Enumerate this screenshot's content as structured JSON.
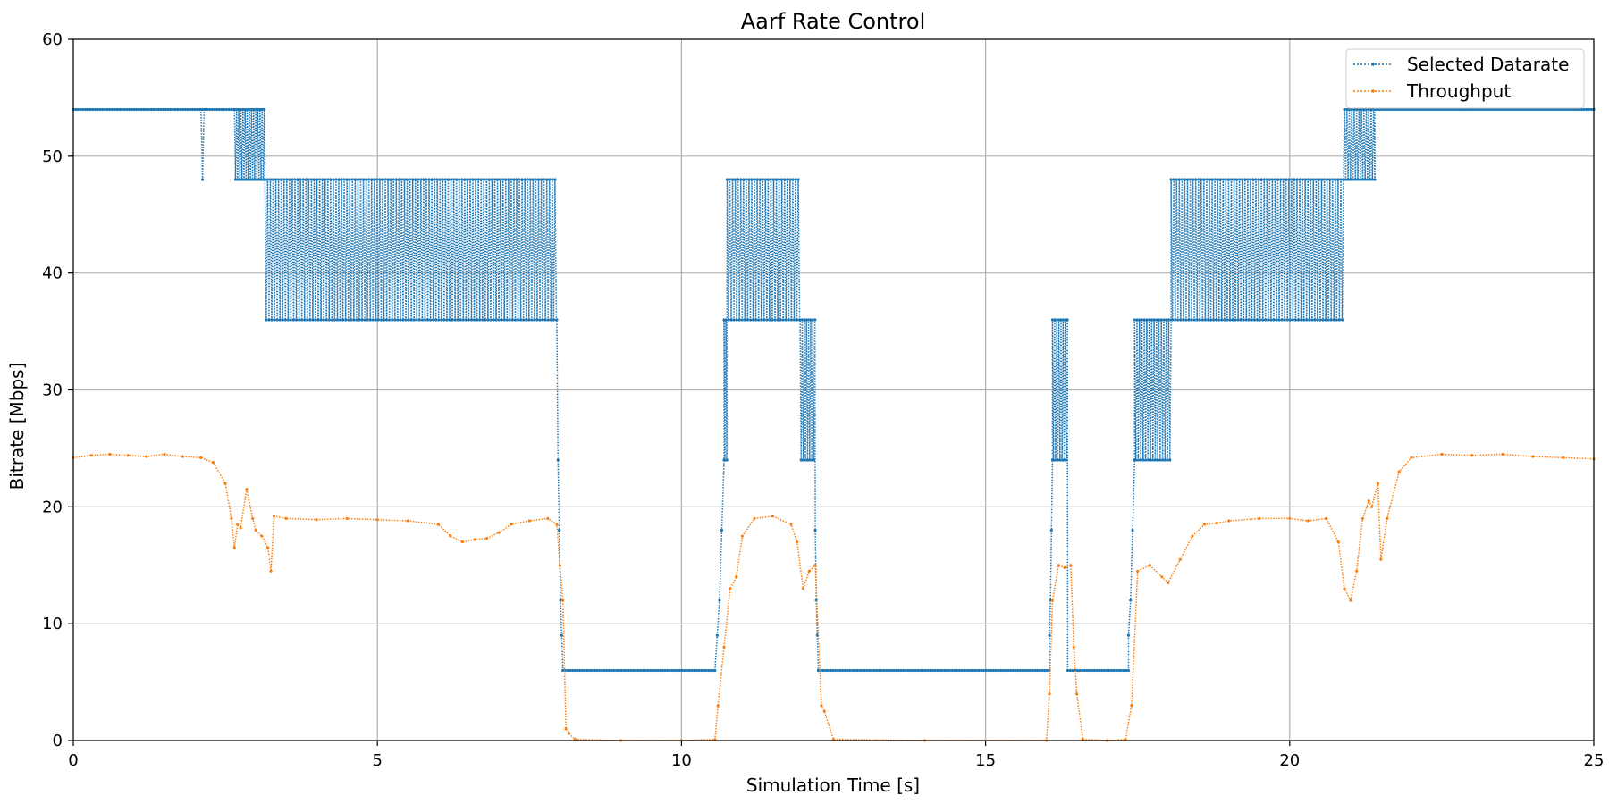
{
  "chart_data": {
    "type": "line",
    "title": "Aarf Rate Control",
    "xlabel": "Simulation Time [s]",
    "ylabel": "Bitrate [Mbps]",
    "xlim": [
      0,
      25
    ],
    "ylim": [
      0,
      60
    ],
    "xticks": [
      0,
      5,
      10,
      15,
      20,
      25
    ],
    "yticks": [
      0,
      10,
      20,
      30,
      40,
      50,
      60
    ],
    "grid": true,
    "legend_position": "top-right",
    "line_style": "dotted",
    "series": [
      {
        "name": "Selected Datarate",
        "color": "#1f77b4",
        "segments": [
          {
            "x0": 0.0,
            "x1": 2.65,
            "kind": "flat",
            "y": 54
          },
          {
            "x0": 2.1,
            "x1": 2.15,
            "kind": "oscillate",
            "lo": 48,
            "hi": 54,
            "period": 0.05
          },
          {
            "x0": 2.65,
            "x1": 3.15,
            "kind": "oscillate",
            "lo": 48,
            "hi": 54,
            "period": 0.035
          },
          {
            "x0": 3.15,
            "x1": 7.95,
            "kind": "oscillate",
            "lo": 36,
            "hi": 48,
            "period": 0.045
          },
          {
            "x0": 7.95,
            "x1": 8.05,
            "kind": "steps",
            "ys": [
              36,
              24,
              18,
              12,
              9,
              6
            ]
          },
          {
            "x0": 8.05,
            "x1": 10.55,
            "kind": "flat",
            "y": 6
          },
          {
            "x0": 10.55,
            "x1": 10.7,
            "kind": "steps",
            "ys": [
              6,
              9,
              12,
              18,
              24
            ]
          },
          {
            "x0": 10.7,
            "x1": 10.75,
            "kind": "oscillate",
            "lo": 24,
            "hi": 36,
            "period": 0.03
          },
          {
            "x0": 10.75,
            "x1": 11.95,
            "kind": "oscillate",
            "lo": 36,
            "hi": 48,
            "period": 0.045
          },
          {
            "x0": 11.95,
            "x1": 12.2,
            "kind": "oscillate",
            "lo": 24,
            "hi": 36,
            "period": 0.035
          },
          {
            "x0": 12.2,
            "x1": 12.25,
            "kind": "steps",
            "ys": [
              18,
              12,
              9,
              6
            ]
          },
          {
            "x0": 12.25,
            "x1": 16.05,
            "kind": "flat",
            "y": 6
          },
          {
            "x0": 16.05,
            "x1": 16.1,
            "kind": "steps",
            "ys": [
              9,
              12,
              18,
              24
            ]
          },
          {
            "x0": 16.1,
            "x1": 16.35,
            "kind": "oscillate",
            "lo": 24,
            "hi": 36,
            "period": 0.035
          },
          {
            "x0": 16.35,
            "x1": 17.35,
            "kind": "flat",
            "y": 6
          },
          {
            "x0": 17.35,
            "x1": 17.45,
            "kind": "steps",
            "ys": [
              9,
              12,
              18,
              24
            ]
          },
          {
            "x0": 17.45,
            "x1": 18.05,
            "kind": "oscillate",
            "lo": 24,
            "hi": 36,
            "period": 0.04
          },
          {
            "x0": 18.05,
            "x1": 20.9,
            "kind": "oscillate",
            "lo": 36,
            "hi": 48,
            "period": 0.045
          },
          {
            "x0": 20.9,
            "x1": 21.4,
            "kind": "oscillate",
            "lo": 48,
            "hi": 54,
            "period": 0.04
          },
          {
            "x0": 21.4,
            "x1": 25.0,
            "kind": "flat",
            "y": 54
          }
        ]
      },
      {
        "name": "Throughput",
        "color": "#ff7f0e",
        "x": [
          0.0,
          0.3,
          0.6,
          0.9,
          1.2,
          1.5,
          1.8,
          2.1,
          2.3,
          2.5,
          2.6,
          2.65,
          2.7,
          2.75,
          2.85,
          2.95,
          3.0,
          3.1,
          3.2,
          3.25,
          3.3,
          3.5,
          4.0,
          4.5,
          5.0,
          5.5,
          6.0,
          6.2,
          6.4,
          6.6,
          6.8,
          7.0,
          7.2,
          7.5,
          7.8,
          7.95,
          8.0,
          8.05,
          8.1,
          8.15,
          8.25,
          9.0,
          10.0,
          10.55,
          10.6,
          10.7,
          10.8,
          10.9,
          11.0,
          11.2,
          11.5,
          11.8,
          11.9,
          12.0,
          12.1,
          12.2,
          12.3,
          12.35,
          12.5,
          14.0,
          16.0,
          16.05,
          16.1,
          16.2,
          16.3,
          16.4,
          16.45,
          16.5,
          16.6,
          17.0,
          17.3,
          17.4,
          17.5,
          17.7,
          17.9,
          18.0,
          18.2,
          18.4,
          18.6,
          18.8,
          19.0,
          19.5,
          20.0,
          20.3,
          20.6,
          20.8,
          20.9,
          21.0,
          21.1,
          21.2,
          21.3,
          21.35,
          21.45,
          21.5,
          21.6,
          21.8,
          22.0,
          22.5,
          23.0,
          23.5,
          24.0,
          24.5,
          25.0
        ],
        "y": [
          24.2,
          24.4,
          24.5,
          24.4,
          24.3,
          24.5,
          24.3,
          24.2,
          23.8,
          22.0,
          19.0,
          16.5,
          18.5,
          18.2,
          21.5,
          19.0,
          18.0,
          17.5,
          16.5,
          14.5,
          19.2,
          19.0,
          18.9,
          19.0,
          18.9,
          18.8,
          18.5,
          17.5,
          17.0,
          17.2,
          17.3,
          17.8,
          18.5,
          18.8,
          19.0,
          18.5,
          15.0,
          12.0,
          1.0,
          0.6,
          0.1,
          0.0,
          0.0,
          0.1,
          3.0,
          8.0,
          13.0,
          14.0,
          17.5,
          19.0,
          19.2,
          18.5,
          17.0,
          13.0,
          14.5,
          15.0,
          3.0,
          2.5,
          0.1,
          0.0,
          0.0,
          4.0,
          12.0,
          15.0,
          14.8,
          15.0,
          8.0,
          4.0,
          0.1,
          0.0,
          0.1,
          3.0,
          14.5,
          15.0,
          14.0,
          13.5,
          15.5,
          17.5,
          18.5,
          18.6,
          18.8,
          19.0,
          19.0,
          18.8,
          19.0,
          17.0,
          13.0,
          12.0,
          14.5,
          19.0,
          20.5,
          20.0,
          22.0,
          15.5,
          19.0,
          23.0,
          24.2,
          24.5,
          24.4,
          24.5,
          24.3,
          24.2,
          24.1
        ]
      }
    ]
  }
}
